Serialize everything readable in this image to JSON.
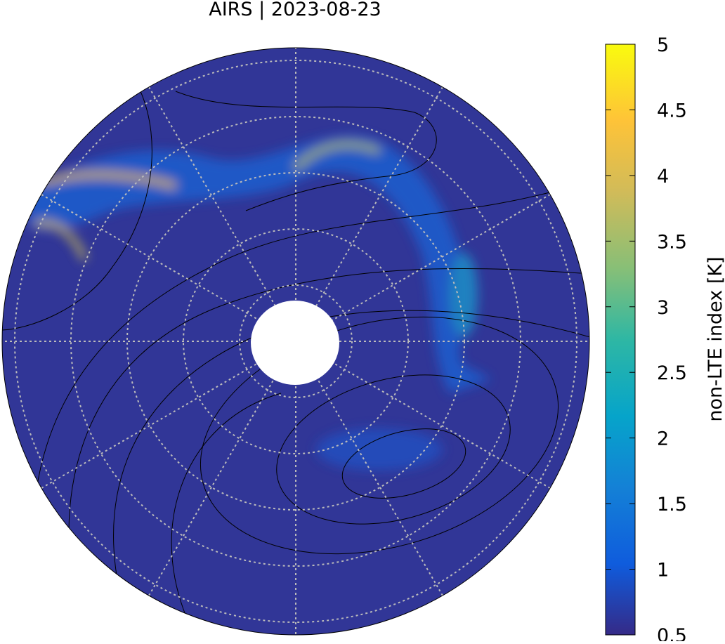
{
  "title": "AIRS | 2023-08-23",
  "colorbar": {
    "label": "non-LTE index [K]",
    "lim": [
      0.5,
      5
    ],
    "ticks": [
      0.5,
      1,
      1.5,
      2,
      2.5,
      3,
      3.5,
      4,
      4.5,
      5
    ]
  }
}
